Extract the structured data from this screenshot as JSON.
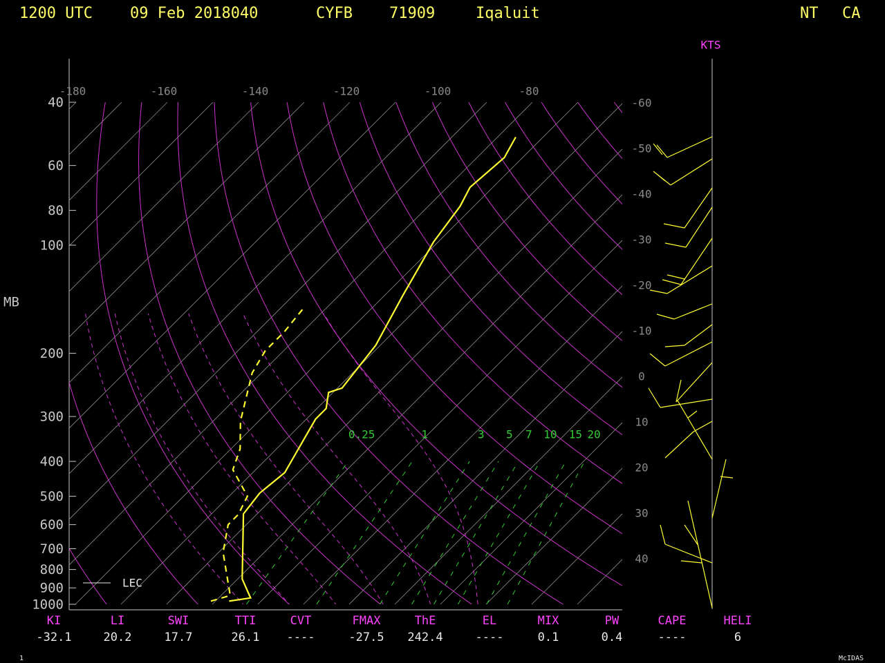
{
  "header": {
    "time": "1200 UTC",
    "date": "09 Feb 2018040",
    "station": "CYFB",
    "id": "71909",
    "name": "Iqaluit",
    "region": "NT",
    "country": "CA"
  },
  "axes": {
    "pressure_label": "MB",
    "pressure_ticks": [
      40,
      60,
      80,
      100,
      200,
      300,
      400,
      500,
      600,
      700,
      800,
      900,
      1000
    ],
    "top_temperature_ticks": [
      -180,
      -160,
      -140,
      -120,
      -100,
      -80
    ],
    "right_temperature_ticks": [
      -60,
      -50,
      -40,
      -30,
      -20,
      -10,
      0,
      10,
      20,
      30,
      40
    ],
    "wind_unit": "KTS",
    "mixing_ratio_labels": [
      0.25,
      1,
      3,
      5,
      7,
      10,
      15,
      20
    ]
  },
  "sounding": {
    "temperature": {
      "pressure": [
        980,
        960,
        850,
        560,
        490,
        430,
        305,
        285,
        257,
        250,
        190,
        138,
        98,
        78,
        69,
        57,
        50
      ],
      "temp": [
        -37,
        -33,
        -39,
        -53,
        -54,
        -53,
        -58,
        -58,
        -61,
        -59,
        -61,
        -66,
        -71,
        -73,
        -75,
        -74,
        -76
      ]
    },
    "dewpoint": {
      "pressure": [
        980,
        945,
        855,
        717,
        600,
        562,
        500,
        422,
        369,
        309,
        227,
        197,
        174,
        149
      ],
      "temp": [
        -41,
        -38,
        -42,
        -49,
        -54,
        -54,
        -56,
        -65,
        -68,
        -74,
        -82,
        -84,
        -84,
        -85
      ]
    }
  },
  "legend": "LEC",
  "indices": [
    {
      "name": "KI",
      "value": -32.1
    },
    {
      "name": "LI",
      "value": 20.2
    },
    {
      "name": "SWI",
      "value": 17.7
    },
    {
      "name": "TTI",
      "value": 26.1
    },
    {
      "name": "CVT",
      "value": "----"
    },
    {
      "name": "FMAX",
      "value": -27.5
    },
    {
      "name": "ThE",
      "value": 242.4
    },
    {
      "name": "EL",
      "value": "----"
    },
    {
      "name": "MIX",
      "value": 0.1
    },
    {
      "name": "PW",
      "value": 0.4
    },
    {
      "name": "CAPE",
      "value": "----"
    },
    {
      "name": "HELI",
      "value": 6
    }
  ],
  "footer": {
    "left": "1",
    "right": "McIDAS"
  }
}
